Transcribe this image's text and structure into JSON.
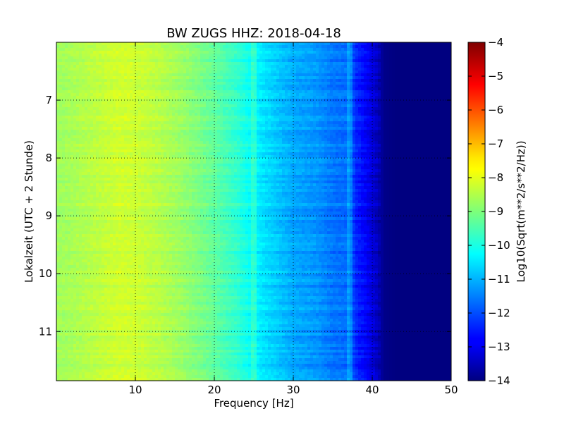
{
  "chart_data": {
    "type": "heatmap",
    "title": "BW ZUGS HHZ: 2018-04-18",
    "xlabel": "Frequency [Hz]",
    "ylabel": "Lokalzeit (UTC + 2 Stunde)",
    "xlim": [
      0,
      50
    ],
    "ylim": [
      6.0,
      11.85
    ],
    "y_axis_inverted": true,
    "x_ticks": [
      {
        "value": 10,
        "label": "10"
      },
      {
        "value": 20,
        "label": "20"
      },
      {
        "value": 30,
        "label": "30"
      },
      {
        "value": 40,
        "label": "40"
      },
      {
        "value": 50,
        "label": "50"
      }
    ],
    "y_ticks": [
      {
        "value": 7,
        "label": "7"
      },
      {
        "value": 8,
        "label": "8"
      },
      {
        "value": 9,
        "label": "9"
      },
      {
        "value": 10,
        "label": "10"
      },
      {
        "value": 11,
        "label": "11"
      }
    ],
    "grid": true,
    "colormap": "jet",
    "colorbar": {
      "label": "Log10(Sqrt(m**2/s**2/Hz))",
      "range": [
        -14,
        -4
      ],
      "ticks": [
        {
          "value": -4,
          "label": "−4"
        },
        {
          "value": -5,
          "label": "−5"
        },
        {
          "value": -6,
          "label": "−6"
        },
        {
          "value": -7,
          "label": "−7"
        },
        {
          "value": -8,
          "label": "−8"
        },
        {
          "value": -9,
          "label": "−9"
        },
        {
          "value": -10,
          "label": "−10"
        },
        {
          "value": -11,
          "label": "−11"
        },
        {
          "value": -12,
          "label": "−12"
        },
        {
          "value": -13,
          "label": "−13"
        },
        {
          "value": -14,
          "label": "−14"
        }
      ]
    },
    "frequency_profile": {
      "frequency_hz": [
        0,
        2,
        5,
        8,
        10,
        13,
        16,
        20,
        23,
        25,
        28,
        30,
        33,
        35,
        37,
        38,
        39.5,
        40.5,
        41.5,
        43,
        50
      ],
      "log10_amplitude": [
        -8.7,
        -8.6,
        -8.4,
        -8.2,
        -8.25,
        -8.45,
        -8.75,
        -9.3,
        -9.8,
        -10.3,
        -10.8,
        -11.1,
        -11.3,
        -11.6,
        -11.7,
        -12.4,
        -12.9,
        -13.3,
        -13.9,
        -14.0,
        -14.0
      ]
    },
    "notable_features": [
      {
        "frequency_hz": 25,
        "description": "narrow bright band"
      },
      {
        "frequency_hz": 37.2,
        "description": "narrow bright band"
      }
    ]
  }
}
